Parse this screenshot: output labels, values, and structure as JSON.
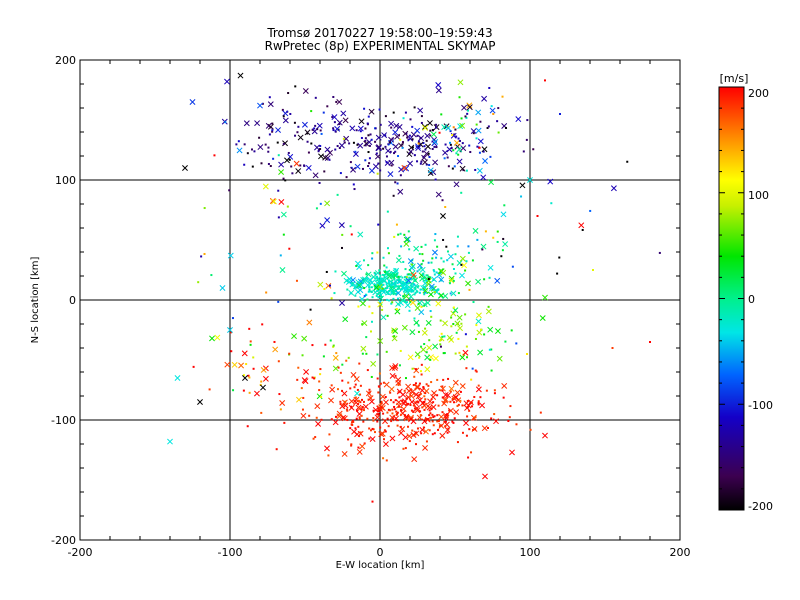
{
  "chart_data": {
    "type": "scatter",
    "title": "Tromsø 20170227 19:58:00–19:59:43",
    "subtitle": "RwPretec (8p) EXPERIMENTAL SKYMAP",
    "xlabel": "E-W location [km]",
    "ylabel": "N-S location [km]",
    "xlim": [
      -200,
      200
    ],
    "ylim": [
      -200,
      200
    ],
    "xticks": [
      "-200",
      "-100",
      "0",
      "100",
      "200"
    ],
    "yticks": [
      "-200",
      "-100",
      "0",
      "100",
      "200"
    ],
    "grid": true,
    "colorbar": {
      "label": "[m/s]",
      "range": [
        -200,
        200
      ],
      "ticks": [
        "-200",
        "-100",
        "0",
        "100",
        "200"
      ],
      "colormap": "rainbow: black–purple–blue–cyan–green–yellow–red"
    },
    "marker_types": [
      "x",
      "dot"
    ],
    "clusters": [
      {
        "center": [
          10,
          128
        ],
        "spread": [
          32,
          16
        ],
        "velocity_mean": -140,
        "velocity_spread": 30,
        "count": 220
      },
      {
        "center": [
          -60,
          135
        ],
        "spread": [
          22,
          22
        ],
        "velocity_mean": -150,
        "velocity_spread": 35,
        "count": 90
      },
      {
        "center": [
          55,
          140
        ],
        "spread": [
          15,
          18
        ],
        "velocity_mean": -80,
        "velocity_spread": 110,
        "count": 60
      },
      {
        "center": [
          10,
          12
        ],
        "spread": [
          15,
          6
        ],
        "velocity_mean": -20,
        "velocity_spread": 10,
        "count": 260
      },
      {
        "center": [
          25,
          25
        ],
        "spread": [
          25,
          18
        ],
        "velocity_mean": 0,
        "velocity_spread": 35,
        "count": 150
      },
      {
        "center": [
          25,
          -30
        ],
        "spread": [
          30,
          20
        ],
        "velocity_mean": 60,
        "velocity_spread": 40,
        "count": 130
      },
      {
        "center": [
          20,
          -88
        ],
        "spread": [
          28,
          15
        ],
        "velocity_mean": 190,
        "velocity_spread": 10,
        "count": 380
      },
      {
        "center": [
          -5,
          -105
        ],
        "spread": [
          25,
          15
        ],
        "velocity_mean": 190,
        "velocity_spread": 10,
        "count": 60
      },
      {
        "center": [
          -70,
          -60
        ],
        "spread": [
          28,
          22
        ],
        "velocity_mean": 150,
        "velocity_spread": 60,
        "count": 60
      },
      {
        "center": [
          20,
          60
        ],
        "spread": [
          65,
          50
        ],
        "velocity_mean": 0,
        "velocity_spread": 160,
        "count": 120
      }
    ],
    "outliers": [
      {
        "x": -130,
        "y": 110,
        "v": -200,
        "marker": "x"
      },
      {
        "x": -93,
        "y": 187,
        "v": -200,
        "marker": "x"
      },
      {
        "x": -102,
        "y": 182,
        "v": -120,
        "marker": "x"
      },
      {
        "x": -125,
        "y": 165,
        "v": -90,
        "marker": "x"
      },
      {
        "x": -120,
        "y": -85,
        "v": -200,
        "marker": "x"
      },
      {
        "x": -140,
        "y": -118,
        "v": -30,
        "marker": "x"
      },
      {
        "x": -135,
        "y": -65,
        "v": -30,
        "marker": "x"
      },
      {
        "x": -100,
        "y": -25,
        "v": -40,
        "marker": "x"
      },
      {
        "x": -105,
        "y": 10,
        "v": -40,
        "marker": "x"
      },
      {
        "x": -112,
        "y": -32,
        "v": 40,
        "marker": "x"
      },
      {
        "x": 110,
        "y": 183,
        "v": 200,
        "marker": "dot"
      },
      {
        "x": 120,
        "y": 155,
        "v": -100,
        "marker": "dot"
      },
      {
        "x": 110,
        "y": -113,
        "v": 200,
        "marker": "x"
      },
      {
        "x": 155,
        "y": -40,
        "v": 180,
        "marker": "dot"
      },
      {
        "x": 180,
        "y": -35,
        "v": 200,
        "marker": "dot"
      },
      {
        "x": 142,
        "y": 25,
        "v": 100,
        "marker": "dot"
      },
      {
        "x": 110,
        "y": 2,
        "v": 50,
        "marker": "x"
      },
      {
        "x": -5,
        "y": -168,
        "v": 200,
        "marker": "dot"
      },
      {
        "x": 70,
        "y": -147,
        "v": 200,
        "marker": "x"
      },
      {
        "x": 88,
        "y": -127,
        "v": 200,
        "marker": "x"
      },
      {
        "x": 98,
        "y": -45,
        "v": 120,
        "marker": "dot"
      },
      {
        "x": 100,
        "y": 100,
        "v": -30,
        "marker": "x"
      },
      {
        "x": 105,
        "y": 70,
        "v": 200,
        "marker": "dot"
      },
      {
        "x": -65,
        "y": 25,
        "v": 0,
        "marker": "x"
      },
      {
        "x": -78,
        "y": -73,
        "v": -200,
        "marker": "x"
      },
      {
        "x": -90,
        "y": -65,
        "v": -200,
        "marker": "x"
      },
      {
        "x": 42,
        "y": 70,
        "v": -200,
        "marker": "x"
      },
      {
        "x": -80,
        "y": 162,
        "v": -80,
        "marker": "x"
      }
    ]
  }
}
